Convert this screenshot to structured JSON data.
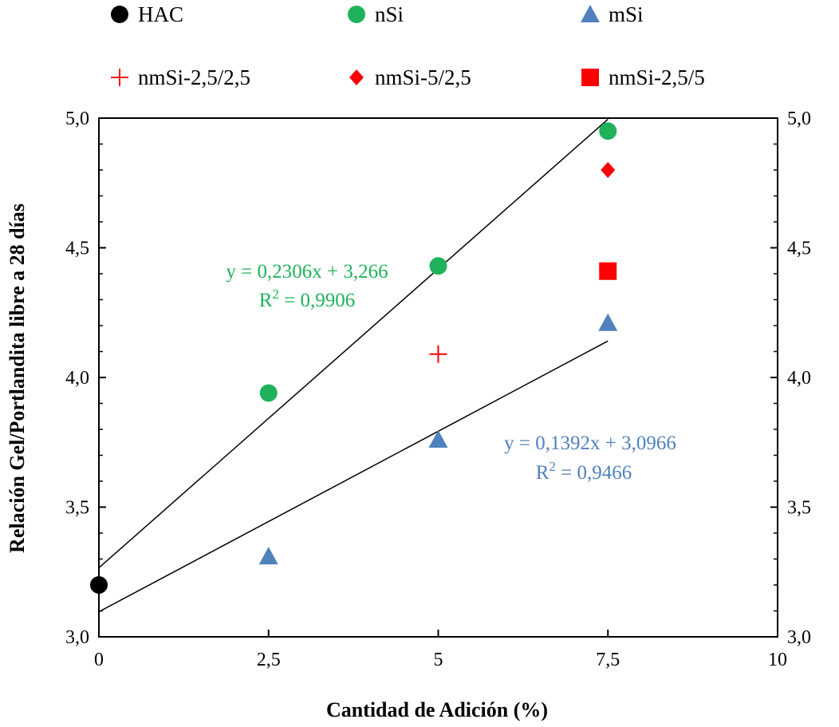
{
  "chart_data": {
    "type": "scatter",
    "xlabel": "Cantidad de Adición (%)",
    "ylabel": "Relación Gel/Portlandita libre a 28 días",
    "xlim": [
      0,
      10
    ],
    "ylim": [
      3.0,
      5.0
    ],
    "x_ticks": [
      0,
      2.5,
      5,
      7.5,
      10
    ],
    "x_tick_labels": [
      "0",
      "2,5",
      "5",
      "7,5",
      "10"
    ],
    "y_ticks": [
      3.0,
      3.5,
      4.0,
      4.5,
      5.0
    ],
    "y_tick_labels": [
      "3,0",
      "3,5",
      "4,0",
      "4,5",
      "5,0"
    ],
    "secondary_y_axis": true,
    "grid": false,
    "legend_position": "top",
    "series": [
      {
        "name": "HAC",
        "marker": "circle",
        "color": "#000000",
        "points": [
          [
            0,
            3.2
          ]
        ]
      },
      {
        "name": "nSi",
        "marker": "circle",
        "color": "#1fb25a",
        "points": [
          [
            2.5,
            3.94
          ],
          [
            5,
            4.43
          ],
          [
            7.5,
            4.95
          ]
        ]
      },
      {
        "name": "mSi",
        "marker": "triangle",
        "color": "#4f81bd",
        "points": [
          [
            2.5,
            3.31
          ],
          [
            5,
            3.76
          ],
          [
            7.5,
            4.21
          ]
        ]
      },
      {
        "name": "nmSi-2,5/2,5",
        "marker": "plus",
        "color": "#ff0000",
        "points": [
          [
            5,
            4.09
          ]
        ]
      },
      {
        "name": "nmSi-5/2,5",
        "marker": "diamond",
        "color": "#ff0000",
        "points": [
          [
            7.5,
            4.8
          ]
        ]
      },
      {
        "name": "nmSi-2,5/5",
        "marker": "square",
        "color": "#ff0000",
        "points": [
          [
            7.5,
            4.41
          ]
        ]
      }
    ],
    "trendlines": [
      {
        "series": "nSi",
        "slope": 0.2306,
        "intercept": 3.266,
        "x_range": [
          0,
          7.5
        ],
        "equation": "y = 0,2306x + 3,266",
        "r2_label": "R",
        "r2_sup": "2",
        "r2_value": " = 0,9906",
        "color": "#1fb25a"
      },
      {
        "series": "mSi",
        "slope": 0.1392,
        "intercept": 3.0966,
        "x_range": [
          0,
          7.5
        ],
        "equation": "y = 0,1392x + 3,0966",
        "r2_label": "R",
        "r2_sup": "2",
        "r2_value": " = 0,9466",
        "color": "#4f81bd"
      }
    ]
  }
}
